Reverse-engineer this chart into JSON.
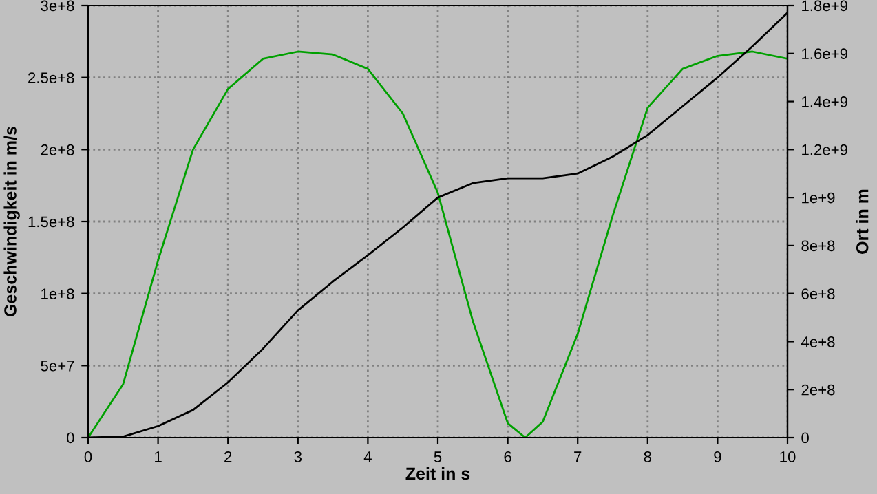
{
  "chart_data": {
    "type": "line",
    "xlabel": "Zeit in s",
    "ylabel": "Geschwindigkeit in m/s",
    "y2label": "Ort in m",
    "x": [
      0,
      0.5,
      1,
      1.5,
      2,
      2.5,
      3,
      3.5,
      4,
      4.5,
      5,
      5.5,
      6,
      6.25,
      6.5,
      7,
      7.5,
      8,
      8.5,
      9,
      9.5,
      10
    ],
    "series": [
      {
        "color": "#00a000",
        "values": [
          0,
          37000000.0,
          123000000.0,
          200000000.0,
          242000000.0,
          263000000.0,
          268000000.0,
          266000000.0,
          256000000.0,
          225000000.0,
          170000000.0,
          81000000.0,
          10000000.0,
          0,
          11000000.0,
          72000000.0,
          154000000.0,
          229000000.0,
          256000000.0,
          265000000.0,
          268000000.0,
          263000000.0
        ]
      },
      {
        "color": "#000000",
        "axis": "y2",
        "values": [
          0,
          4000000.0,
          48000000.0,
          115000000.0,
          230000000.0,
          370000000.0,
          530000000.0,
          650000000.0,
          760000000.0,
          875000000.0,
          1000000000.0,
          1060000000.0,
          1080000000.0,
          1080000000.0,
          1080000000.0,
          1100000000.0,
          1170000000.0,
          1260000000.0,
          1380000000.0,
          1500000000.0,
          1630000000.0,
          1770000000.0
        ]
      }
    ],
    "xlim": [
      0,
      10
    ],
    "xticks": [
      0,
      1,
      2,
      3,
      4,
      5,
      6,
      7,
      8,
      9,
      10
    ],
    "ylim": [
      0,
      300000000.0
    ],
    "yticks": [
      {
        "value": 0,
        "label": "0"
      },
      {
        "value": 50000000.0,
        "label": "5e+7"
      },
      {
        "value": 100000000.0,
        "label": "1e+8"
      },
      {
        "value": 150000000.0,
        "label": "1.5e+8"
      },
      {
        "value": 200000000.0,
        "label": "2e+8"
      },
      {
        "value": 250000000.0,
        "label": "2.5e+8"
      },
      {
        "value": 300000000.0,
        "label": "3e+8"
      }
    ],
    "y2lim": [
      0,
      1800000000.0
    ],
    "y2ticks": [
      {
        "value": 0,
        "label": "0"
      },
      {
        "value": 200000000.0,
        "label": "2e+8"
      },
      {
        "value": 400000000.0,
        "label": "4e+8"
      },
      {
        "value": 600000000.0,
        "label": "6e+8"
      },
      {
        "value": 800000000.0,
        "label": "8e+8"
      },
      {
        "value": 1000000000.0,
        "label": "1e+9"
      },
      {
        "value": 1200000000.0,
        "label": "1.2e+9"
      },
      {
        "value": 1400000000.0,
        "label": "1.4e+9"
      },
      {
        "value": 1600000000.0,
        "label": "1.6e+9"
      },
      {
        "value": 1800000000.0,
        "label": "1.8e+9"
      }
    ],
    "grid": true,
    "line_style": "solid"
  }
}
